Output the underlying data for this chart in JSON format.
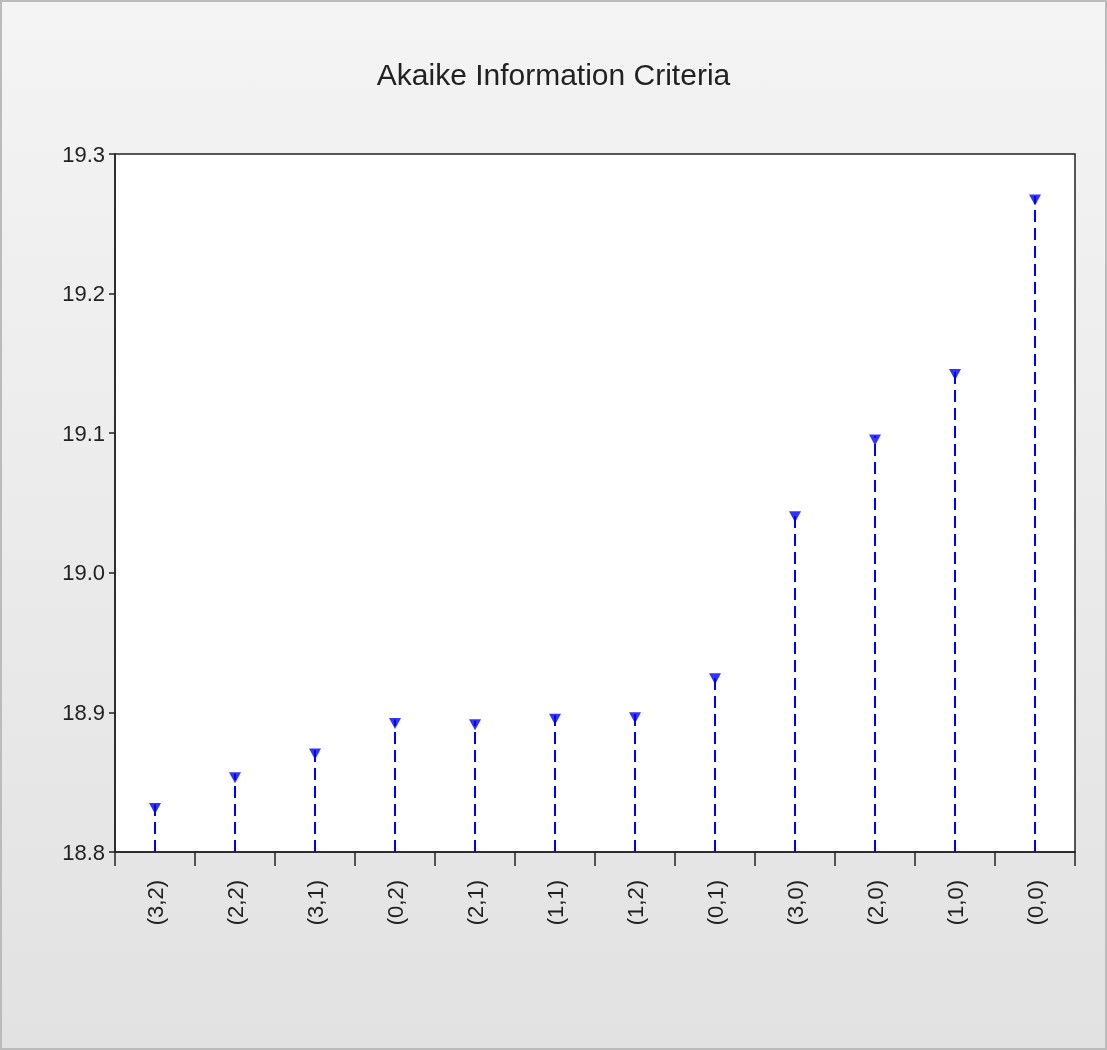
{
  "chart_data": {
    "type": "lollipop",
    "title": "Akaike Information Criteria",
    "categories": [
      "(3,2)",
      "(2,2)",
      "(3,1)",
      "(0,2)",
      "(2,1)",
      "(1,1)",
      "(1,2)",
      "(0,1)",
      "(3,0)",
      "(2,0)",
      "(1,0)",
      "(0,0)"
    ],
    "values": [
      18.834,
      18.856,
      18.873,
      18.895,
      18.894,
      18.898,
      18.899,
      18.927,
      19.043,
      19.098,
      19.145,
      19.27
    ],
    "color": "#0000ff",
    "ylim": [
      18.8,
      19.3
    ],
    "yticks": [
      {
        "value": 18.8,
        "label": "18.8"
      },
      {
        "value": 18.9,
        "label": "18.9"
      },
      {
        "value": 19.0,
        "label": "19.0"
      },
      {
        "value": 19.1,
        "label": "19.1"
      },
      {
        "value": 19.2,
        "label": "19.2"
      },
      {
        "value": 19.3,
        "label": "19.3"
      }
    ],
    "marker": "triangle",
    "line_style": "dashed"
  }
}
